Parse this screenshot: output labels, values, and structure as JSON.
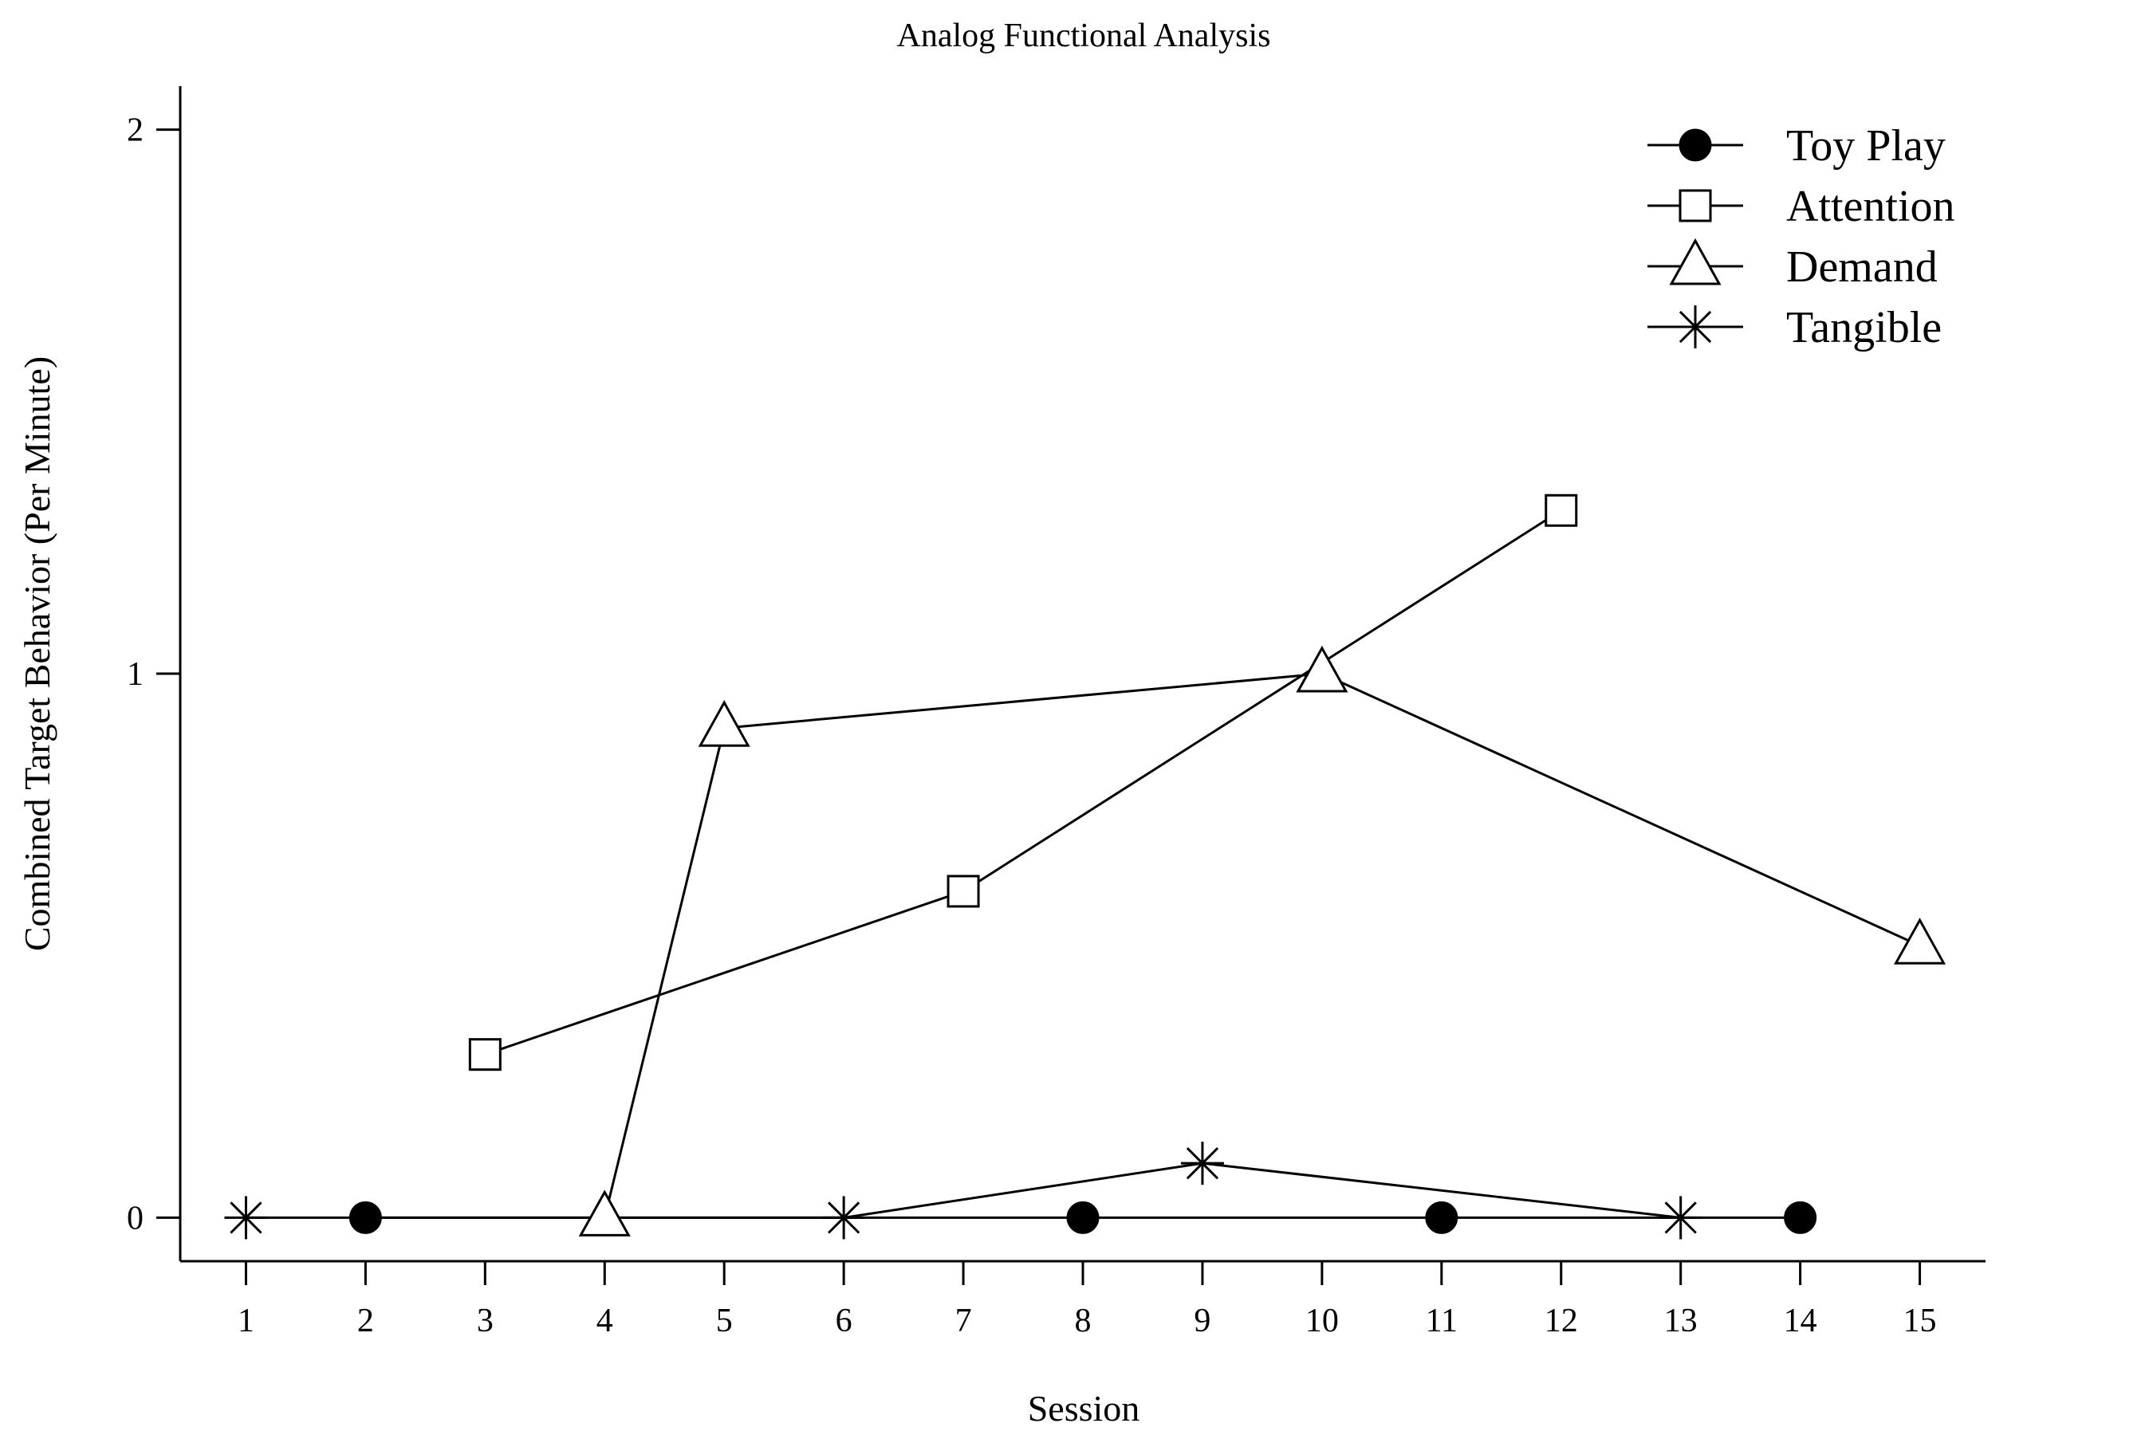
{
  "chart_data": {
    "type": "line",
    "title": "Analog Functional Analysis",
    "xlabel": "Session",
    "ylabel": "Combined Target Behavior (Per Minute)",
    "x_ticks": [
      1,
      2,
      3,
      4,
      5,
      6,
      7,
      8,
      9,
      10,
      11,
      12,
      13,
      14,
      15
    ],
    "y_ticks": [
      0,
      1,
      2
    ],
    "xlim": [
      0.45,
      15.55
    ],
    "ylim": [
      -0.08,
      2.08
    ],
    "grid": false,
    "legend_position": "top-right",
    "series": [
      {
        "name": "Toy Play",
        "marker": "filled-circle",
        "x": [
          2,
          8,
          11,
          14
        ],
        "y": [
          0,
          0,
          0,
          0
        ]
      },
      {
        "name": "Attention",
        "marker": "open-square",
        "x": [
          3,
          7,
          12
        ],
        "y": [
          0.3,
          0.6,
          1.3
        ]
      },
      {
        "name": "Demand",
        "marker": "open-triangle",
        "x": [
          4,
          5,
          10,
          15
        ],
        "y": [
          0,
          0.9,
          1.0,
          0.5
        ]
      },
      {
        "name": "Tangible",
        "marker": "asterisk",
        "x": [
          1,
          6,
          9,
          13
        ],
        "y": [
          0,
          0,
          0.1,
          0
        ]
      }
    ]
  }
}
